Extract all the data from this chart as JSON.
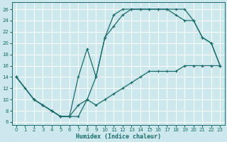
{
  "xlabel": "Humidex (Indice chaleur)",
  "bg_color": "#cce8ec",
  "grid_color": "#b0d8dc",
  "line_color": "#1a6b6b",
  "xlim": [
    -0.5,
    23.5
  ],
  "ylim": [
    5.5,
    27.2
  ],
  "xticks": [
    0,
    1,
    2,
    3,
    4,
    5,
    6,
    7,
    8,
    9,
    10,
    11,
    12,
    13,
    14,
    15,
    16,
    17,
    18,
    19,
    20,
    21,
    22,
    23
  ],
  "yticks": [
    6,
    8,
    10,
    12,
    14,
    16,
    18,
    20,
    22,
    24,
    26
  ],
  "line1_x": [
    0,
    1,
    2,
    3,
    4,
    5,
    6,
    7,
    8,
    9,
    10,
    11,
    12,
    13,
    14,
    15,
    16,
    17,
    18,
    19,
    20,
    21,
    22,
    23
  ],
  "line1_y": [
    14,
    12,
    10,
    9,
    8,
    7,
    7,
    7,
    10,
    14,
    21,
    25,
    26,
    26,
    26,
    26,
    26,
    26,
    26,
    26,
    24,
    21,
    20,
    16
  ],
  "line2_x": [
    0,
    2,
    3,
    4,
    5,
    6,
    7,
    8,
    9,
    10,
    11,
    12,
    13,
    14,
    15,
    16,
    17,
    18,
    19,
    20,
    21,
    22,
    23
  ],
  "line2_y": [
    14,
    10,
    9,
    8,
    7,
    7,
    14,
    19,
    14,
    21,
    23,
    25,
    26,
    26,
    26,
    26,
    26,
    25,
    24,
    24,
    21,
    20,
    16
  ],
  "line3_x": [
    0,
    2,
    3,
    4,
    5,
    6,
    7,
    8,
    9,
    10,
    11,
    12,
    13,
    14,
    15,
    16,
    17,
    18,
    19,
    20,
    21,
    22,
    23
  ],
  "line3_y": [
    14,
    10,
    9,
    8,
    7,
    7,
    9,
    10,
    9,
    10,
    11,
    12,
    13,
    14,
    15,
    15,
    15,
    15,
    16,
    16,
    16,
    16,
    16
  ]
}
